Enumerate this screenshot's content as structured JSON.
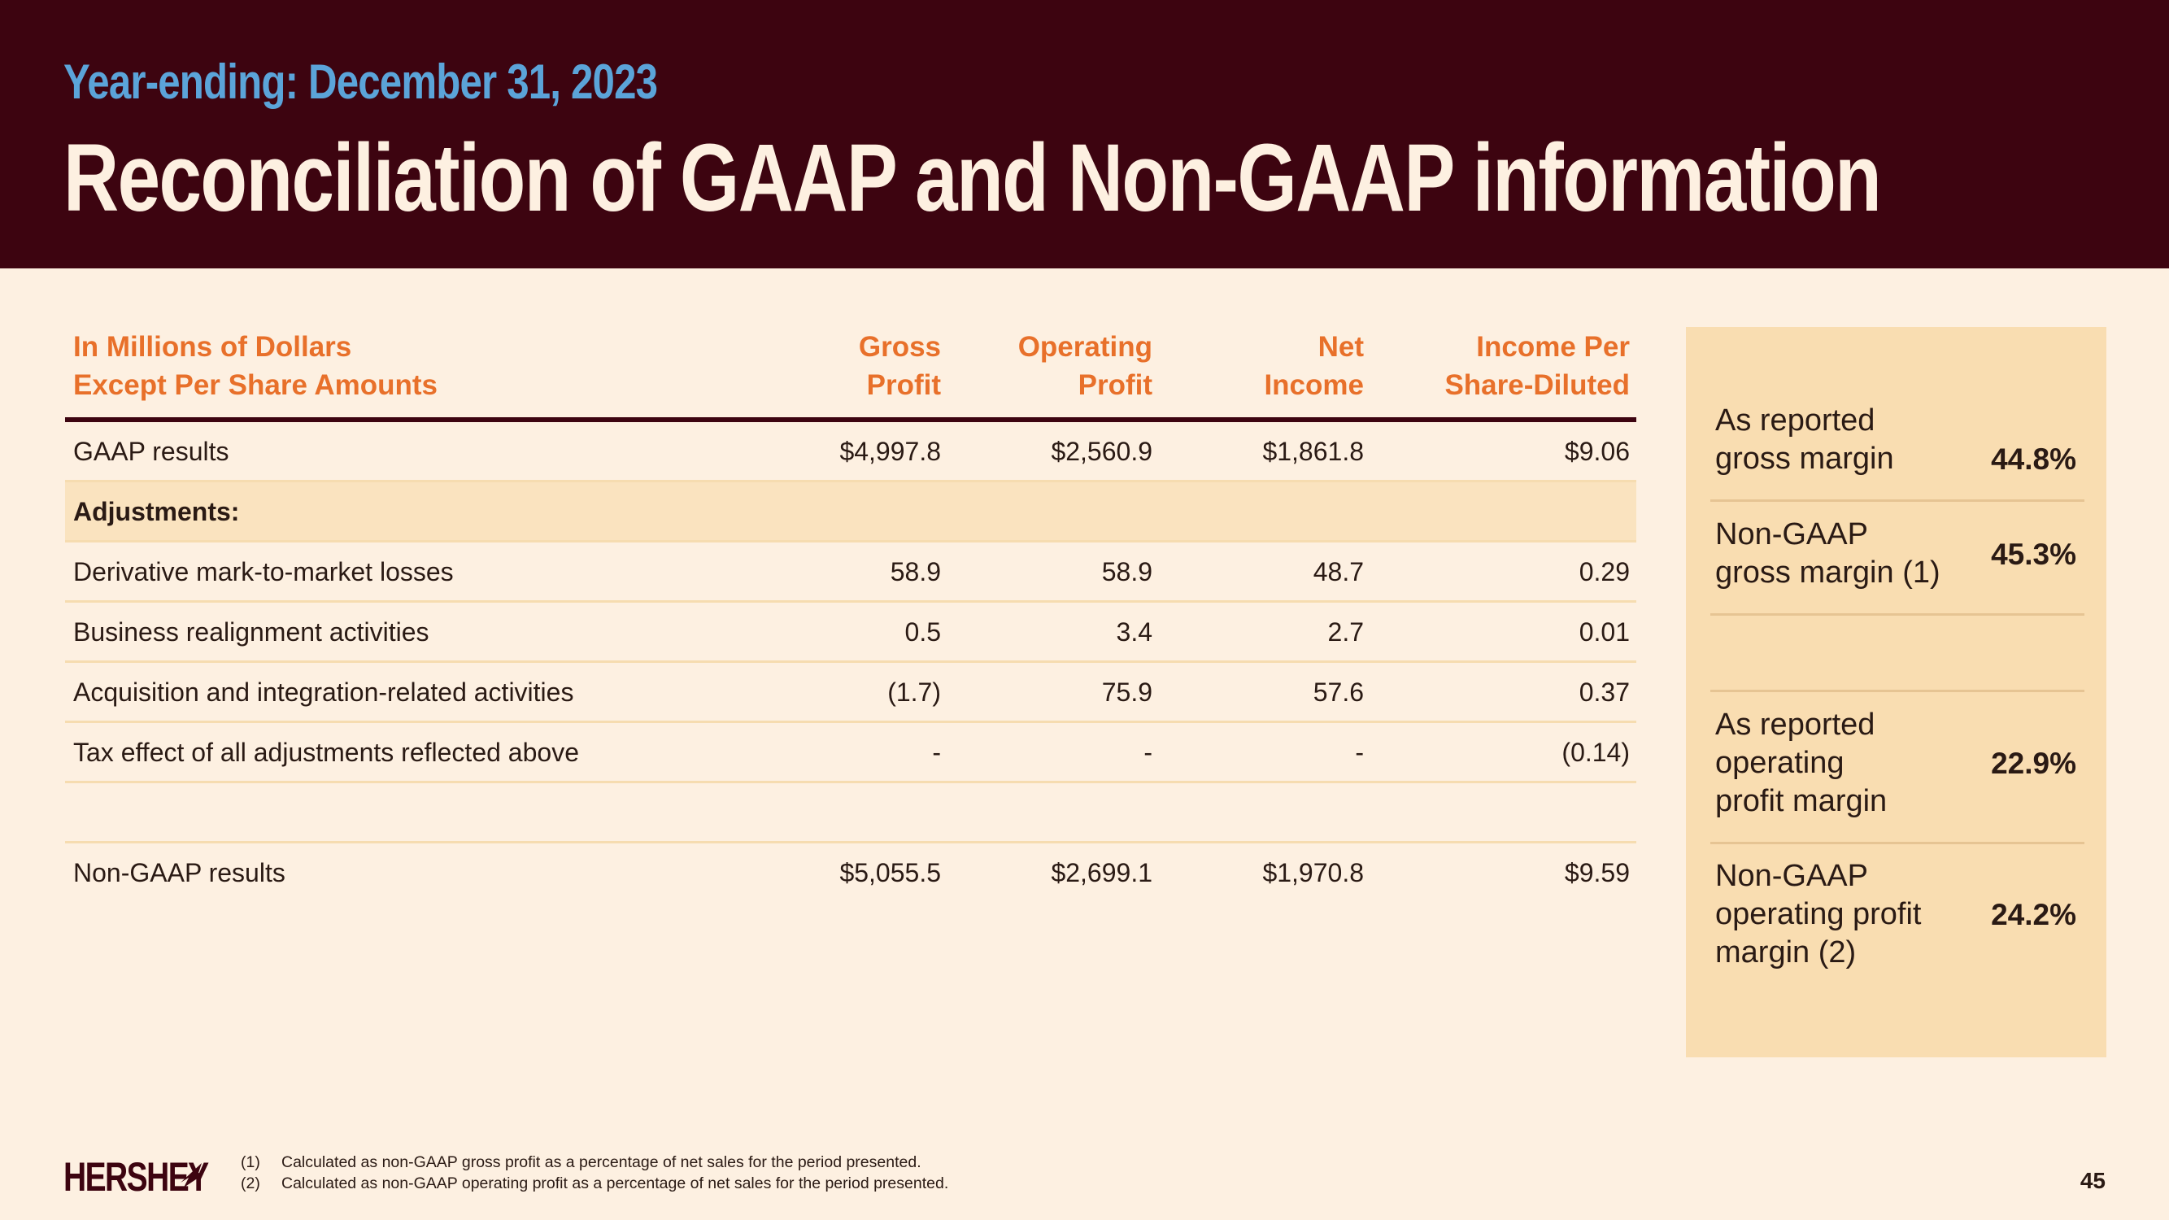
{
  "header": {
    "subtitle": "Year-ending: December 31, 2023",
    "title": "Reconciliation of GAAP and Non-GAAP information"
  },
  "table": {
    "header": {
      "label_line1": "In Millions of Dollars",
      "label_line2": "Except Per Share Amounts",
      "col1_line1": "Gross",
      "col1_line2": "Profit",
      "col2_line1": "Operating",
      "col2_line2": "Profit",
      "col3_line1": "Net",
      "col3_line2": "Income",
      "col4_line1": "Income Per",
      "col4_line2": "Share-Diluted"
    },
    "rows": [
      {
        "label": "GAAP results",
        "v1": "$4,997.8",
        "v2": "$2,560.9",
        "v3": "$1,861.8",
        "v4": "$9.06"
      },
      {
        "label": "Adjustments:"
      },
      {
        "label": "Derivative mark-to-market losses",
        "v1": "58.9",
        "v2": "58.9",
        "v3": "48.7",
        "v4": "0.29"
      },
      {
        "label": "Business realignment activities",
        "v1": "0.5",
        "v2": "3.4",
        "v3": "2.7",
        "v4": "0.01"
      },
      {
        "label": "Acquisition and integration-related activities",
        "v1": "(1.7)",
        "v2": "75.9",
        "v3": "57.6",
        "v4": "0.37"
      },
      {
        "label": "Tax effect of all adjustments reflected above",
        "v1": "-",
        "v2": "-",
        "v3": "-",
        "v4": "(0.14)"
      },
      {
        "label": "Non-GAAP results",
        "v1": "$5,055.5",
        "v2": "$2,699.1",
        "v3": "$1,970.8",
        "v4": "$9.59"
      }
    ]
  },
  "panel": {
    "items": [
      {
        "l1": "As reported",
        "l2": "gross margin",
        "value": "44.8%"
      },
      {
        "l1": "Non-GAAP",
        "l2": "gross margin (1)",
        "value": "45.3%"
      },
      {
        "l1": "As reported",
        "l2": "operating",
        "l3": "profit margin",
        "value": "22.9%"
      },
      {
        "l1": "Non-GAAP",
        "l2": "operating profit",
        "l3": "margin (2)",
        "value": "24.2%"
      }
    ]
  },
  "footer": {
    "logo": "HERSHEY",
    "notes": [
      {
        "num": "(1)",
        "text": "Calculated as non-GAAP gross profit as a percentage of net sales for the period presented."
      },
      {
        "num": "(2)",
        "text": "Calculated as non-GAAP operating profit as a percentage of net sales for the period presented."
      }
    ],
    "page_number": "45"
  },
  "colors": {
    "header_bg": "#3d0410",
    "accent_orange": "#e8702a",
    "accent_blue": "#5ba4d9",
    "page_bg": "#fdf0e1",
    "panel_bg": "#f9ddb1"
  }
}
